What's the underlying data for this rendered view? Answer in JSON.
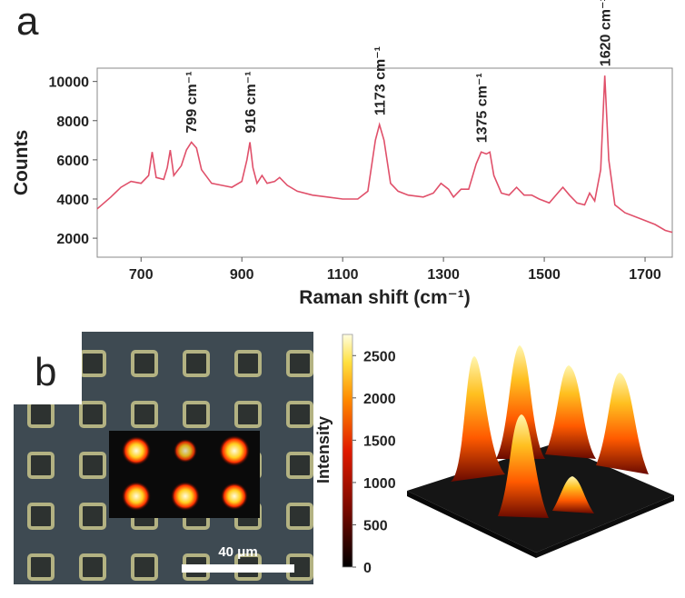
{
  "panel_labels": [
    "a",
    "b"
  ],
  "scale_bar": "40 μm",
  "chart_data": [
    {
      "type": "line",
      "xlabel": "Raman shift (cm⁻¹)",
      "ylabel": "Counts",
      "color": "#e0506a",
      "x": [
        613,
        640,
        660,
        680,
        700,
        715,
        722,
        730,
        745,
        752,
        758,
        765,
        780,
        790,
        800,
        810,
        820,
        840,
        860,
        880,
        900,
        910,
        916,
        922,
        930,
        940,
        950,
        965,
        975,
        990,
        1010,
        1040,
        1070,
        1100,
        1130,
        1150,
        1165,
        1173,
        1182,
        1195,
        1210,
        1230,
        1260,
        1280,
        1295,
        1310,
        1320,
        1335,
        1350,
        1365,
        1375,
        1385,
        1392,
        1400,
        1415,
        1430,
        1445,
        1460,
        1475,
        1490,
        1510,
        1530,
        1537,
        1550,
        1565,
        1580,
        1590,
        1600,
        1612,
        1620,
        1628,
        1640,
        1660,
        1690,
        1720,
        1740,
        1754
      ],
      "values": [
        3500,
        4100,
        4600,
        4900,
        4800,
        5200,
        6400,
        5100,
        5000,
        5600,
        6500,
        5200,
        5700,
        6500,
        6900,
        6600,
        5500,
        4800,
        4700,
        4600,
        4900,
        6000,
        6900,
        5600,
        4800,
        5200,
        4800,
        4900,
        5100,
        4700,
        4400,
        4200,
        4100,
        4000,
        4000,
        4400,
        7000,
        7800,
        7000,
        4800,
        4400,
        4200,
        4100,
        4300,
        4800,
        4500,
        4100,
        4500,
        4500,
        5800,
        6400,
        6300,
        6400,
        5200,
        4300,
        4200,
        4600,
        4200,
        4200,
        4000,
        3800,
        4400,
        4600,
        4200,
        3800,
        3700,
        4300,
        3900,
        5500,
        10300,
        6000,
        3700,
        3300,
        3000,
        2700,
        2400,
        2300
      ],
      "xlim": [
        613,
        1754
      ],
      "ylim": [
        1030,
        10680
      ],
      "xticks": [
        700,
        900,
        1100,
        1300,
        1500,
        1700
      ],
      "yticks": [
        2000,
        4000,
        6000,
        8000,
        10000
      ],
      "annotations": [
        {
          "text": "799 cm⁻¹",
          "x": 799
        },
        {
          "text": "916 cm⁻¹",
          "x": 916
        },
        {
          "text": "1173 cm⁻¹",
          "x": 1173
        },
        {
          "text": "1375 cm⁻¹",
          "x": 1375
        },
        {
          "text": "1620 cm⁻¹",
          "x": 1620
        }
      ]
    },
    {
      "type": "colorbar",
      "label": "Intensity",
      "clim": [
        0,
        2750
      ],
      "ticks": [
        0,
        500,
        1000,
        1500,
        2000,
        2500
      ]
    }
  ]
}
